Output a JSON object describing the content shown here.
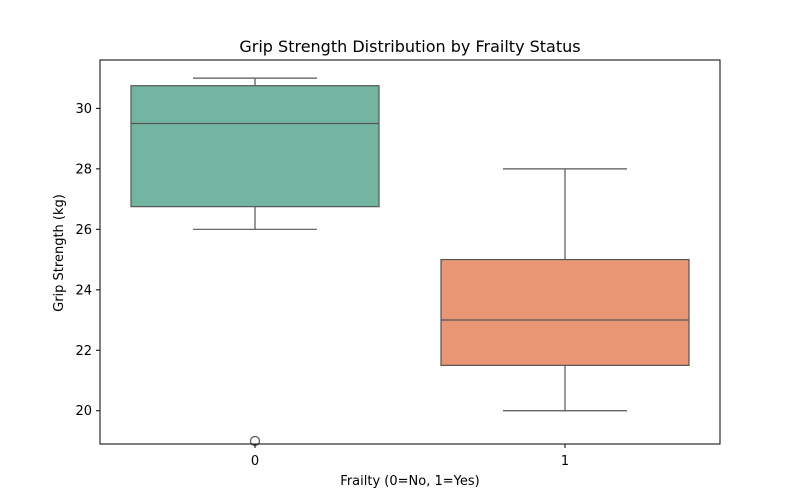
{
  "chart_data": {
    "type": "box",
    "title": "Grip Strength Distribution by Frailty Status",
    "xlabel": "Frailty (0=No, 1=Yes)",
    "ylabel": "Grip Strength (kg)",
    "ylim": [
      18.9,
      31.6
    ],
    "yticks": [
      20,
      22,
      24,
      26,
      28,
      30
    ],
    "grid": false,
    "categories": [
      "0",
      "1"
    ],
    "boxes": [
      {
        "category": "0",
        "whisker_low": 26,
        "q1": 26.75,
        "median": 29.5,
        "q3": 30.75,
        "whisker_high": 31,
        "outliers": [
          19
        ],
        "color": "#72b6a1"
      },
      {
        "category": "1",
        "whisker_low": 20,
        "q1": 21.5,
        "median": 23,
        "q3": 25,
        "whisker_high": 28,
        "outliers": [],
        "color": "#e99675"
      }
    ]
  }
}
